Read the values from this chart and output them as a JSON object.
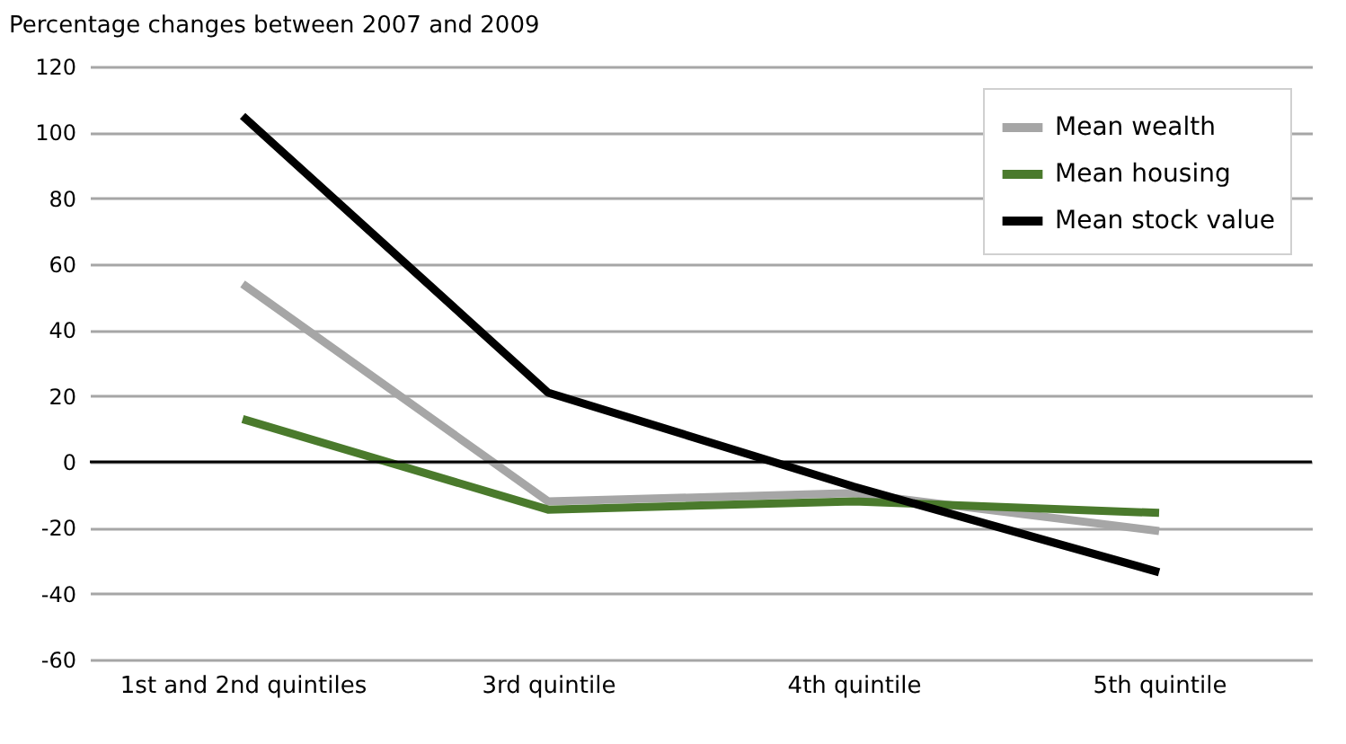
{
  "chart_data": {
    "type": "line",
    "title": "Percentage changes between 2007 and 2009",
    "categories": [
      "1st and 2nd quintiles",
      "3rd quintile",
      "4th quintile",
      "5th quintile"
    ],
    "series": [
      {
        "name": "Mean wealth",
        "color": "#a6a6a6",
        "values": [
          54,
          -12,
          -9.5,
          -21
        ]
      },
      {
        "name": "Mean housing",
        "color": "#4a7a2c",
        "values": [
          13,
          -14.5,
          -12,
          -15.5
        ]
      },
      {
        "name": "Mean stock value",
        "color": "#000000",
        "values": [
          105,
          21,
          -7.5,
          -33.5
        ]
      }
    ],
    "ylim": [
      -60,
      120
    ],
    "yticks": [
      -60,
      -40,
      -20,
      0,
      20,
      40,
      60,
      80,
      100,
      120
    ],
    "ref_lines": [
      {
        "axis": "y",
        "value": 0,
        "color": "#000000"
      }
    ],
    "grid": "y",
    "legend": "top right",
    "marker": "none",
    "line_style": "solid"
  }
}
